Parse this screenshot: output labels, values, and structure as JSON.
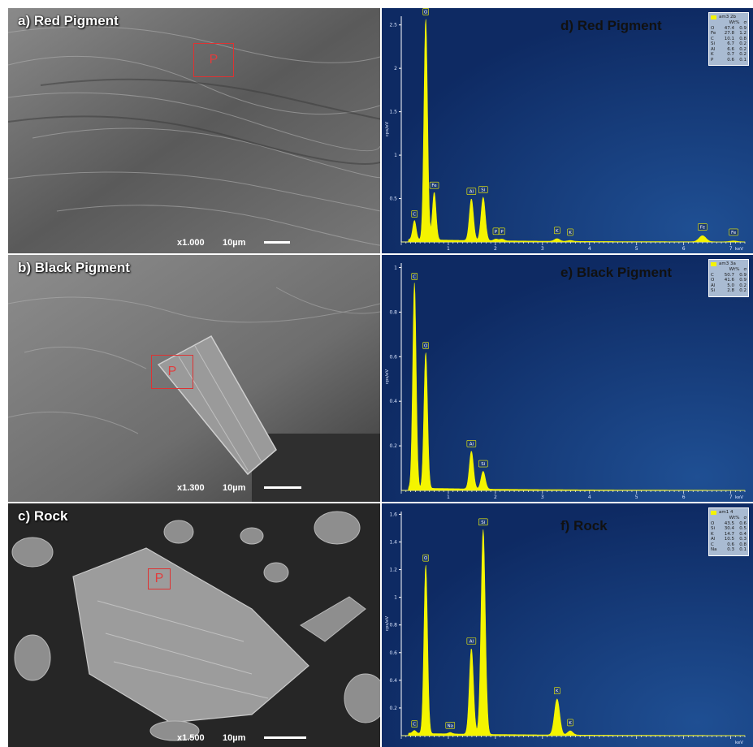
{
  "sem_panels": [
    {
      "id": "a",
      "title": "a) Red Pigment",
      "roi_label": "P",
      "magnification": "x1.000",
      "scale": "10µm"
    },
    {
      "id": "b",
      "title": "b) Black Pigment",
      "roi_label": "P",
      "magnification": "x1.300",
      "scale": "10µm"
    },
    {
      "id": "c",
      "title": "c) Rock",
      "roi_label": "P",
      "magnification": "x1.500",
      "scale": "10µm"
    }
  ],
  "colors": {
    "spectrum": "#f4f400",
    "background": "#0e2a63",
    "axis": "#ffffff",
    "roi": "#dd3333"
  },
  "chart_data": [
    {
      "type": "line",
      "id": "d",
      "title": "d)   Red Pigment",
      "ylabel": "cps/eV",
      "xlabel": "keV",
      "xlim": [
        0,
        7.3
      ],
      "ylim": [
        0,
        2.6
      ],
      "yticks": [
        "0.5",
        "1",
        "1.5",
        "2",
        "2.5"
      ],
      "xticks": [
        "1",
        "2",
        "3",
        "4",
        "5",
        "6",
        "7"
      ],
      "peaks": [
        {
          "label": "C",
          "x": 0.28,
          "y": 0.22
        },
        {
          "label": "O",
          "x": 0.52,
          "y": 2.55
        },
        {
          "label": "Fe",
          "x": 0.7,
          "y": 0.55
        },
        {
          "label": "Al",
          "x": 1.49,
          "y": 0.48
        },
        {
          "label": "Si",
          "x": 1.74,
          "y": 0.5
        },
        {
          "label": "P",
          "x": 2.01,
          "y": 0.02
        },
        {
          "label": "P",
          "x": 2.14,
          "y": 0.02
        },
        {
          "label": "K",
          "x": 3.31,
          "y": 0.03
        },
        {
          "label": "K",
          "x": 3.59,
          "y": 0.01
        },
        {
          "label": "Fe",
          "x": 6.4,
          "y": 0.07
        },
        {
          "label": "Fe",
          "x": 7.06,
          "y": 0.01
        }
      ],
      "legend": {
        "sample": "am3 2b",
        "columns": [
          "Wt%",
          "σ"
        ],
        "rows": [
          [
            "O",
            "47.4",
            "0.9"
          ],
          [
            "Fe",
            "27.8",
            "1.2"
          ],
          [
            "C",
            "10.1",
            "0.8"
          ],
          [
            "Si",
            "6.7",
            "0.2"
          ],
          [
            "Al",
            "6.6",
            "0.2"
          ],
          [
            "K",
            "0.7",
            "0.2"
          ],
          [
            "P",
            "0.6",
            "0.1"
          ]
        ]
      }
    },
    {
      "type": "line",
      "id": "e",
      "title": "e)   Black Pigment",
      "ylabel": "cps/eV",
      "xlabel": "keV",
      "xlim": [
        0,
        7.3
      ],
      "ylim": [
        0,
        1.02
      ],
      "yticks": [
        "0.2",
        "0.4",
        "0.6",
        "0.8",
        "1"
      ],
      "xticks": [
        "1",
        "2",
        "3",
        "4",
        "5",
        "6",
        "7"
      ],
      "peaks": [
        {
          "label": "C",
          "x": 0.28,
          "y": 0.92
        },
        {
          "label": "O",
          "x": 0.52,
          "y": 0.61
        },
        {
          "label": "Al",
          "x": 1.49,
          "y": 0.17
        },
        {
          "label": "Si",
          "x": 1.74,
          "y": 0.08
        }
      ],
      "legend": {
        "sample": "am3 3a",
        "columns": [
          "Wt%",
          "σ"
        ],
        "rows": [
          [
            "C",
            "50.7",
            "0.9"
          ],
          [
            "O",
            "41.6",
            "0.9"
          ],
          [
            "Al",
            "5.0",
            "0.2"
          ],
          [
            "Si",
            "2.8",
            "0.2"
          ]
        ]
      }
    },
    {
      "type": "line",
      "id": "f",
      "title": "f)    Rock",
      "ylabel": "cps/eV",
      "xlabel": "keV",
      "xlim": [
        0,
        7.3
      ],
      "ylim": [
        0,
        1.62
      ],
      "yticks": [
        "0.2",
        "0.4",
        "0.6",
        "0.8",
        "1",
        "1.2",
        "1.4",
        "1.6"
      ],
      "xticks": [],
      "peaks": [
        {
          "label": "C",
          "x": 0.28,
          "y": 0.02
        },
        {
          "label": "O",
          "x": 0.52,
          "y": 1.22
        },
        {
          "label": "Na",
          "x": 1.04,
          "y": 0.01
        },
        {
          "label": "Al",
          "x": 1.49,
          "y": 0.62
        },
        {
          "label": "Si",
          "x": 1.74,
          "y": 1.48
        },
        {
          "label": "K",
          "x": 3.31,
          "y": 0.26
        },
        {
          "label": "K",
          "x": 3.59,
          "y": 0.03
        }
      ],
      "legend": {
        "sample": "am1 4",
        "columns": [
          "Wt%",
          "σ"
        ],
        "rows": [
          [
            "O",
            "43.5",
            "0.6"
          ],
          [
            "Si",
            "30.4",
            "0.5"
          ],
          [
            "K",
            "14.7",
            "0.4"
          ],
          [
            "Al",
            "10.5",
            "0.3"
          ],
          [
            "C",
            "0.6",
            "0.8"
          ],
          [
            "Na",
            "0.3",
            "0.1"
          ]
        ]
      }
    }
  ]
}
